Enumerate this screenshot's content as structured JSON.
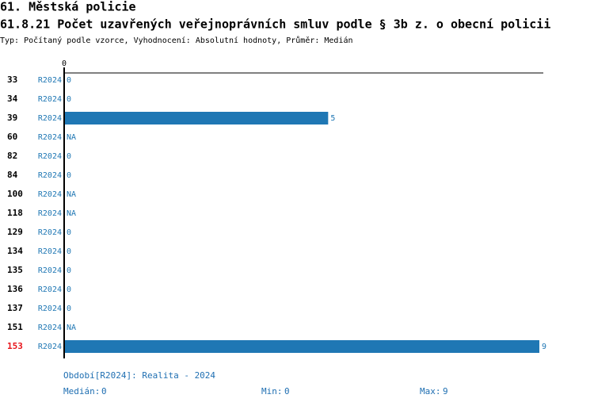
{
  "header": {
    "title": "61. Městská policie",
    "subtitle": "61.8.21 Počet uzavřených veřejnoprávních smluv podle § 3b z. o obecní policii",
    "description": "Typ: Počítaný podle vzorce, Vyhodnocení: Absolutní hodnoty, Průměr: Medián"
  },
  "chart_data": {
    "type": "bar",
    "orientation": "horizontal",
    "categories": [
      "33",
      "34",
      "39",
      "60",
      "82",
      "84",
      "100",
      "118",
      "129",
      "134",
      "135",
      "136",
      "137",
      "151",
      "153"
    ],
    "highlight": "153",
    "highlight_color": "#e8141b",
    "series": [
      {
        "name": "R2024",
        "color": "#1f77b4",
        "values": [
          0,
          0,
          5,
          null,
          0,
          0,
          null,
          null,
          0,
          0,
          0,
          0,
          0,
          null,
          9
        ],
        "value_labels": [
          "0",
          "0",
          "5",
          "NA",
          "0",
          "0",
          "NA",
          "NA",
          "0",
          "0",
          "0",
          "0",
          "0",
          "NA",
          "9"
        ]
      }
    ],
    "xlim": [
      0,
      9
    ],
    "xticks": [
      0
    ]
  },
  "footer": {
    "period": "Období[R2024]: Realita - 2024",
    "median_label": "Medián:",
    "median": 0,
    "min_label": "Min:",
    "min": 0,
    "max_label": "Max:",
    "max": 9
  }
}
